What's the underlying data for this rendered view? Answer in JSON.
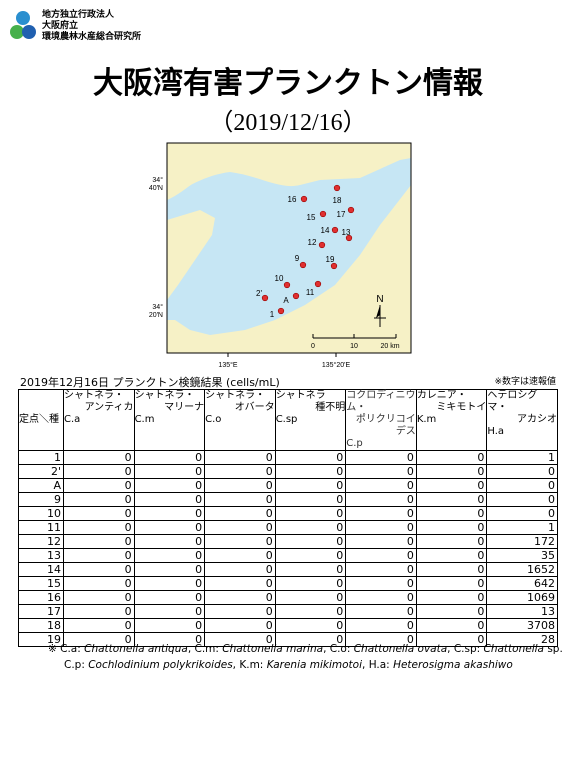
{
  "header": {
    "org": [
      "地方独立行政法人",
      "大阪府立",
      "環境農林水産総合研究所"
    ]
  },
  "title": "大阪湾有害プランクトン情報",
  "date": "（2019/12/16）",
  "map": {
    "lat_labels": [
      [
        "34°",
        "40'N"
      ],
      [
        "34°",
        "20'N"
      ]
    ],
    "lon_labels": [
      "135°E",
      "135°20'E"
    ],
    "scale_labels": [
      "0",
      "10",
      "20 km"
    ],
    "north": "N",
    "stations": [
      "16",
      "18",
      "15",
      "17",
      "14",
      "13",
      "12",
      "9",
      "19",
      "10",
      "11",
      "A",
      "2'",
      "1"
    ]
  },
  "table": {
    "caption": "2019年12月16日  プランクトン検鏡結果 (cells/mL)",
    "note": "※数字は速報値",
    "corner": "定点＼種",
    "columns": [
      [
        "シャトネラ・",
        "アンティカ",
        "C.a"
      ],
      [
        "シャトネラ・",
        "マリーナ",
        "C.m"
      ],
      [
        "シャトネラ・",
        "オバータ",
        "C.o"
      ],
      [
        "シャトネラ",
        "種不明",
        "C.sp"
      ],
      [
        "コクロディニウム・",
        "ポリクリコイデス",
        "C.p"
      ],
      [
        "カレニア・",
        "ミキモトイ",
        "K.m"
      ],
      [
        "ヘテロシグマ・",
        "アカシオ",
        "H.a"
      ]
    ],
    "rows": [
      [
        "1",
        0,
        0,
        0,
        0,
        0,
        0,
        1
      ],
      [
        "2'",
        0,
        0,
        0,
        0,
        0,
        0,
        0
      ],
      [
        "A",
        0,
        0,
        0,
        0,
        0,
        0,
        0
      ],
      [
        "9",
        0,
        0,
        0,
        0,
        0,
        0,
        0
      ],
      [
        "10",
        0,
        0,
        0,
        0,
        0,
        0,
        0
      ],
      [
        "11",
        0,
        0,
        0,
        0,
        0,
        0,
        1
      ],
      [
        "12",
        0,
        0,
        0,
        0,
        0,
        0,
        172
      ],
      [
        "13",
        0,
        0,
        0,
        0,
        0,
        0,
        35
      ],
      [
        "14",
        0,
        0,
        0,
        0,
        0,
        0,
        1652
      ],
      [
        "15",
        0,
        0,
        0,
        0,
        0,
        0,
        642
      ],
      [
        "16",
        0,
        0,
        0,
        0,
        0,
        0,
        1069
      ],
      [
        "17",
        0,
        0,
        0,
        0,
        0,
        0,
        13
      ],
      [
        "18",
        0,
        0,
        0,
        0,
        0,
        0,
        3708
      ],
      [
        "19",
        0,
        0,
        0,
        0,
        0,
        0,
        28
      ]
    ]
  },
  "footnote": {
    "lines": [
      [
        {
          "t": "※ C.a: "
        },
        {
          "t": "Chattonella antiqua",
          "i": true
        },
        {
          "t": ", C.m: "
        },
        {
          "t": "Chattonella marina",
          "i": true
        },
        {
          "t": ", C.o: "
        },
        {
          "t": "Chattonella ovata",
          "i": true
        },
        {
          "t": ", C.sp: "
        },
        {
          "t": "Chattonella",
          "i": true
        },
        {
          "t": " sp."
        }
      ],
      [
        {
          "t": "C.p: "
        },
        {
          "t": "Cochlodinium polykrikoides",
          "i": true
        },
        {
          "t": ",  K.m: "
        },
        {
          "t": "Karenia mikimotoi",
          "i": true
        },
        {
          "t": ",  H.a: "
        },
        {
          "t": "Heterosigma akashiwo",
          "i": true
        }
      ]
    ]
  }
}
